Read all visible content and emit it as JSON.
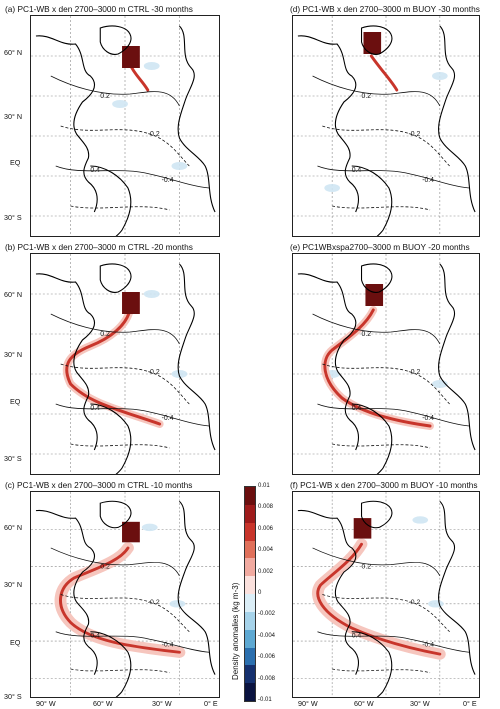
{
  "panels": [
    {
      "id": "a",
      "title": "(a) PC1-WB x den 2700–3000 m CTRL -30 months"
    },
    {
      "id": "b",
      "title": "(b) PC1-WB x den 2700–3000 m CTRL -20 months"
    },
    {
      "id": "c",
      "title": "(c) PC1-WB x den 2700–3000 m CTRL -10 months"
    },
    {
      "id": "d",
      "title": "(d) PC1-WB x den 2700–3000 m BUOY -30 months"
    },
    {
      "id": "e",
      "title": "(e) PC1WBxspa2700–3000 m BUOY -20 months"
    },
    {
      "id": "f",
      "title": "(f) PC1-WB x den 2700–3000 m BUOY -10 months"
    }
  ],
  "lat_ticks": [
    "60° N",
    "30° N",
    "EQ",
    "30° S"
  ],
  "lon_ticks": [
    "90° W",
    "60° W",
    "30° W",
    "0° E"
  ],
  "contour_labels": [
    "0.2",
    "-0.2",
    "0.4",
    "-0.4"
  ],
  "colorbar": {
    "title": "Density anomalies (kg m-3)",
    "ticks": [
      "0.01",
      "0.008",
      "0.006",
      "0.004",
      "0.002",
      "0",
      "-0.002",
      "-0.004",
      "-0.006",
      "-0.008",
      "-0.01"
    ],
    "colors": [
      "#6b0f0f",
      "#9e1b1b",
      "#c8352b",
      "#e0705a",
      "#f1aaa0",
      "#fbe1dd",
      "#dbeef7",
      "#a6d3ea",
      "#5ea9d3",
      "#2b6fae",
      "#15306e",
      "#0a1340"
    ]
  }
}
